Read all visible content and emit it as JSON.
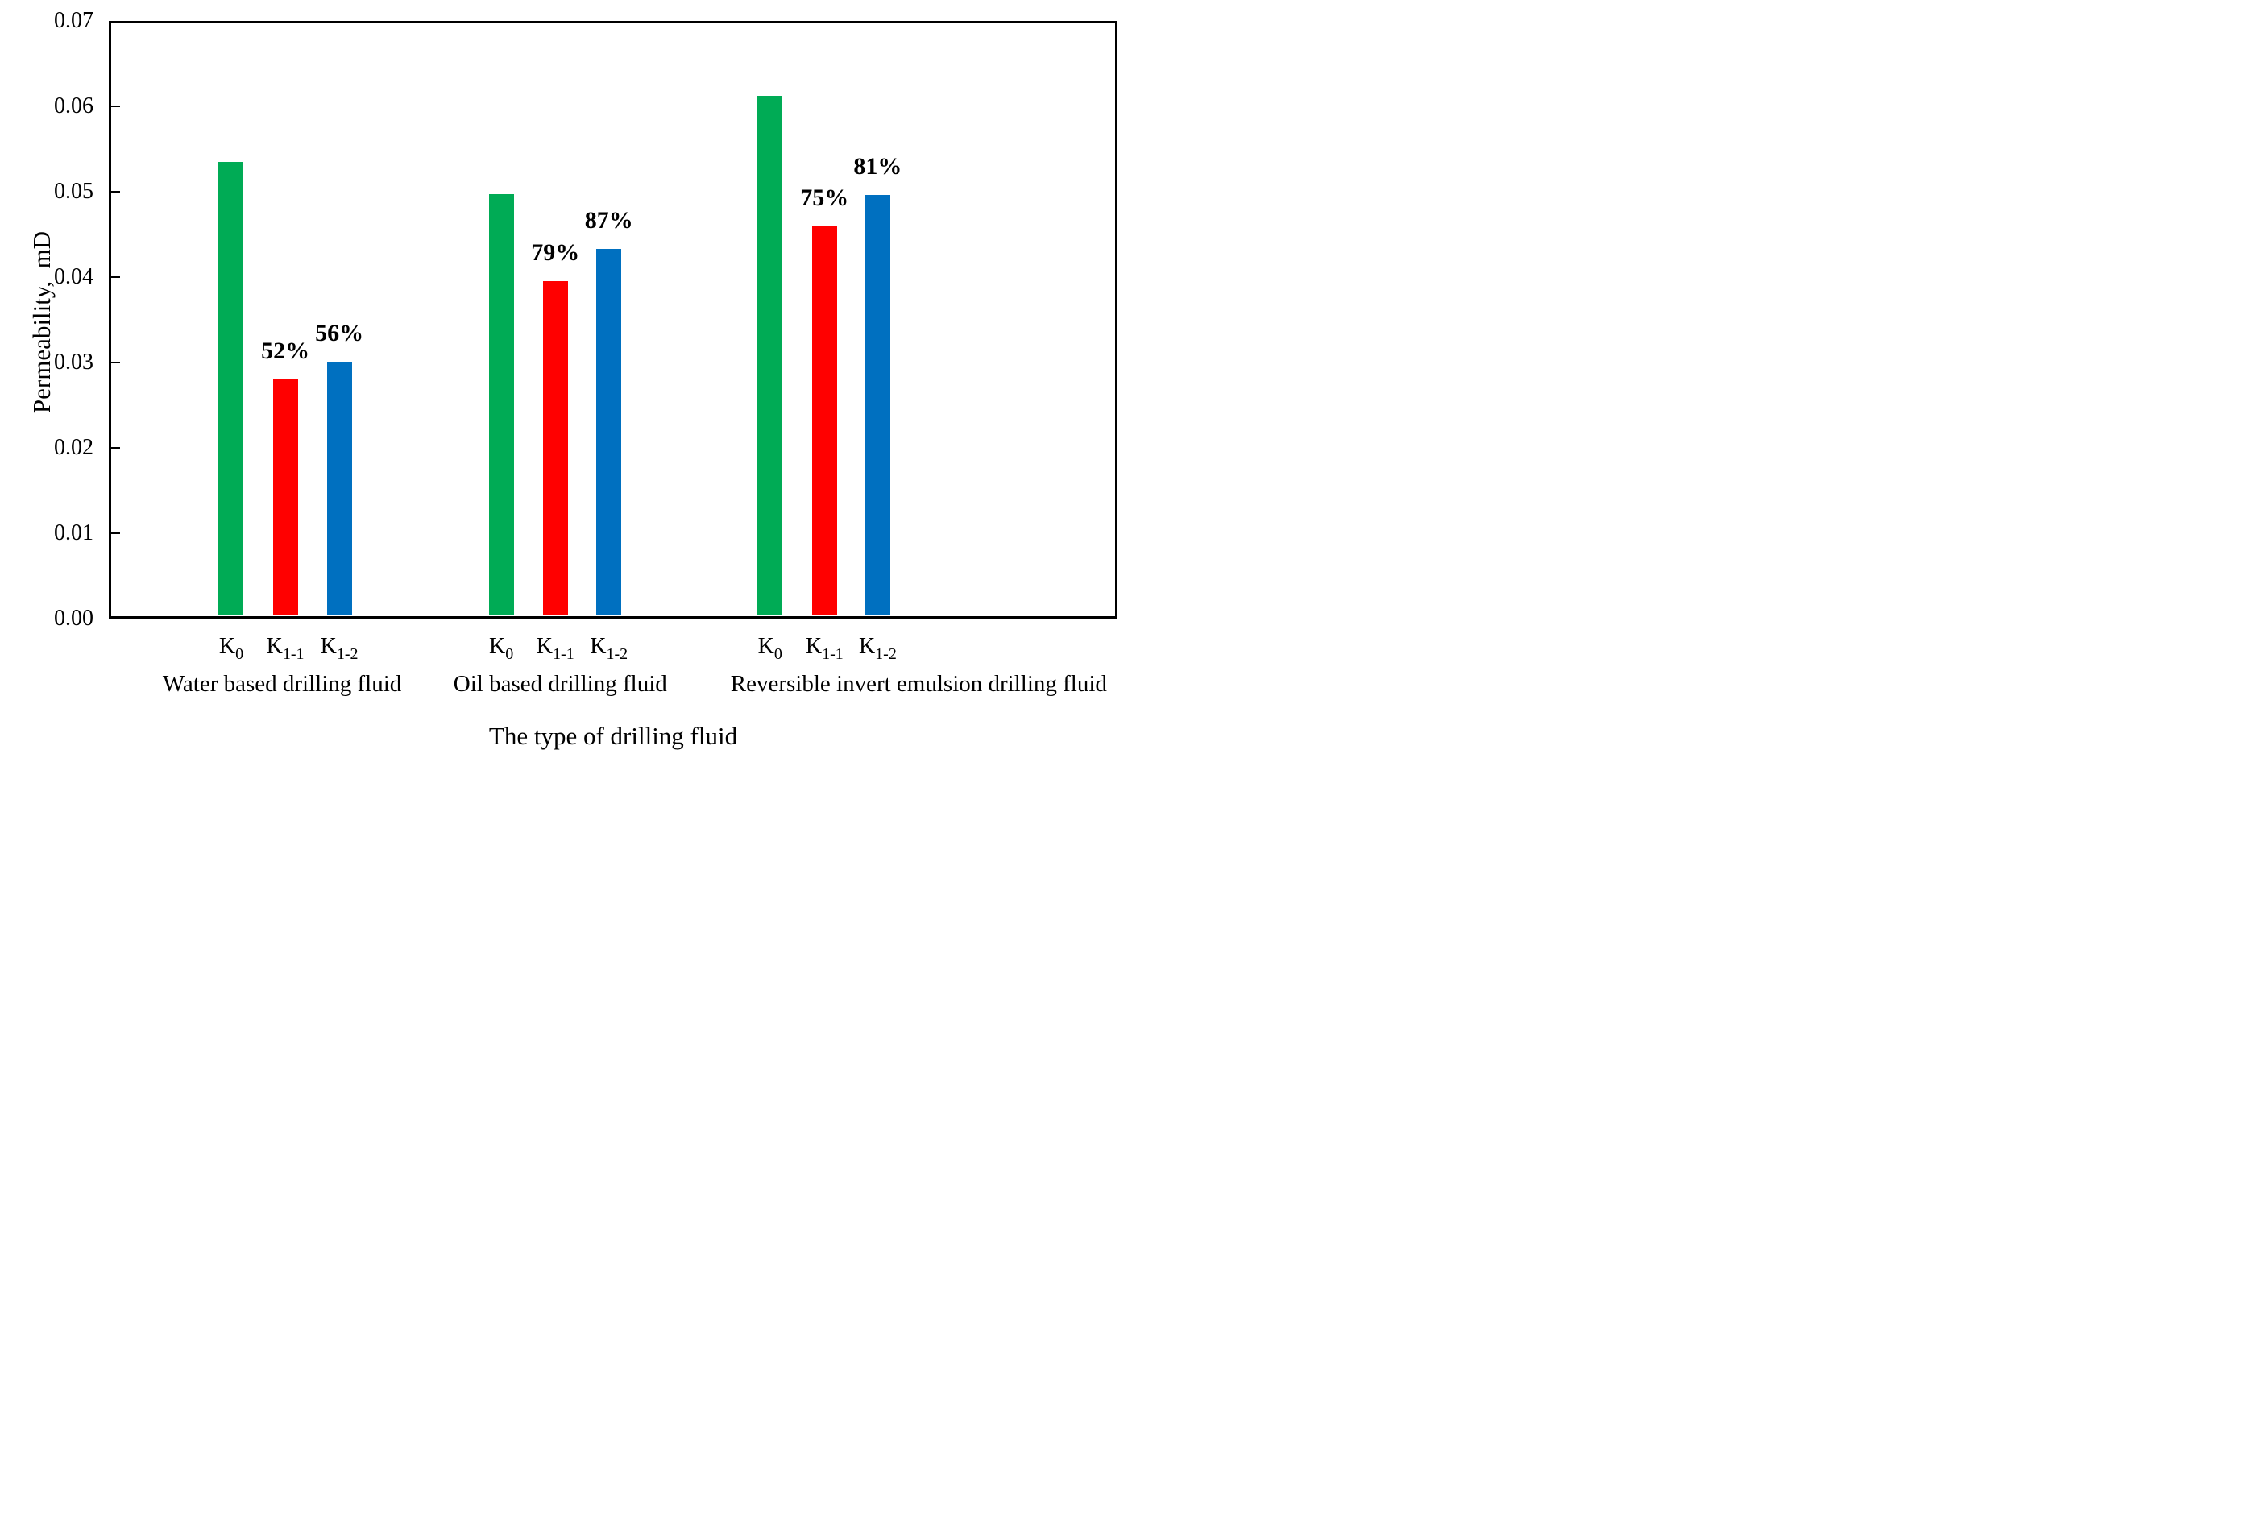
{
  "axes": {
    "y_title": "Permeability,  mD",
    "x_title": "The type of drilling fluid",
    "y_tick_labels": [
      "0.00",
      "0.01",
      "0.02",
      "0.03",
      "0.04",
      "0.05",
      "0.06",
      "0.07"
    ]
  },
  "chart_data": {
    "type": "bar",
    "title": "",
    "ylabel": "Permeability, mD",
    "xlabel": "The type of drilling fluid",
    "ylim": [
      0,
      0.07
    ],
    "ytick_step": 0.01,
    "grid": false,
    "legend_position": "none",
    "categories": [
      "Water based drilling fluid",
      "Oil based drilling fluid",
      "Reversible invert emulsion drilling fluid"
    ],
    "series": [
      {
        "name": "K0",
        "label_base": "K",
        "label_sub": "0",
        "color": "#00AB55",
        "values": [
          0.0535,
          0.0497,
          0.0612
        ],
        "annotations": [
          "",
          "",
          ""
        ]
      },
      {
        "name": "K1-1",
        "label_base": "K",
        "label_sub": "1-1",
        "color": "#FF0000",
        "values": [
          0.028,
          0.0395,
          0.0459
        ],
        "annotations": [
          "52%",
          "79%",
          "75%"
        ]
      },
      {
        "name": "K1-2",
        "label_base": "K",
        "label_sub": "1-2",
        "color": "#0070C0",
        "values": [
          0.0301,
          0.0433,
          0.0496
        ],
        "annotations": [
          "56%",
          "87%",
          "81%"
        ]
      }
    ]
  }
}
